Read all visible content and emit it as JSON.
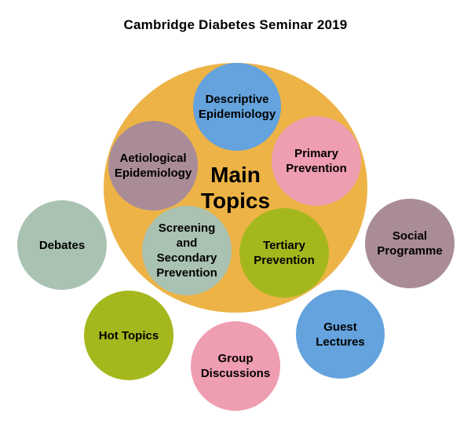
{
  "title": "Cambridge Diabetes Seminar 2019",
  "colors": {
    "orange": "#EDB346",
    "blue": "#64A3DD",
    "mauve": "#A98C98",
    "pink": "#EF9DB1",
    "sage": "#A9C2B2",
    "olive": "#A4B81D",
    "text": "#000000",
    "background": "#FFFFFF"
  },
  "main_circle": {
    "label": "Main\nTopics",
    "color": "#EDB346"
  },
  "main_topics": [
    {
      "id": "descriptive-epidemiology",
      "label": "Descriptive\nEpidemiology",
      "color": "#64A3DD"
    },
    {
      "id": "aetiological-epidemiology",
      "label": "Aetiological\nEpidemiology",
      "color": "#A98C98"
    },
    {
      "id": "primary-prevention",
      "label": "Primary\nPrevention",
      "color": "#EF9DB1"
    },
    {
      "id": "screening-secondary-prevention",
      "label": "Screening\nand Secondary\nPrevention",
      "color": "#A9C2B2"
    },
    {
      "id": "tertiary-prevention",
      "label": "Tertiary\nPrevention",
      "color": "#A4B81D"
    }
  ],
  "other_topics": [
    {
      "id": "debates",
      "label": "Debates",
      "color": "#A9C2B2"
    },
    {
      "id": "social-programme",
      "label": "Social\nProgramme",
      "color": "#A98C98"
    },
    {
      "id": "hot-topics",
      "label": "Hot Topics",
      "color": "#A4B81D"
    },
    {
      "id": "group-discussions",
      "label": "Group\nDiscussions",
      "color": "#EF9DB1"
    },
    {
      "id": "guest-lectures",
      "label": "Guest\nLectures",
      "color": "#64A3DD"
    }
  ]
}
